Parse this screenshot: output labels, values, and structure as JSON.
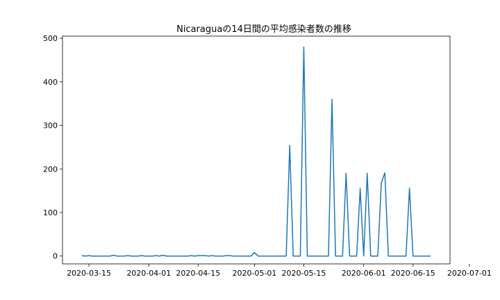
{
  "chart_data": {
    "type": "line",
    "title": "Nicaraguaの14日間の平均感染者数の推移",
    "xlabel": "",
    "ylabel": "",
    "ylim": [
      -18,
      505
    ],
    "xlim_days": [
      -5.5,
      104.5
    ],
    "base_date": "2020-03-15",
    "grid": false,
    "line_color": "#1f77b4",
    "x_ticks": [
      {
        "day": 2,
        "label": "2020-03-15"
      },
      {
        "day": 19,
        "label": "2020-04-01"
      },
      {
        "day": 33,
        "label": "2020-04-15"
      },
      {
        "day": 49,
        "label": "2020-05-01"
      },
      {
        "day": 63,
        "label": "2020-05-15"
      },
      {
        "day": 80,
        "label": "2020-06-01"
      },
      {
        "day": 94,
        "label": "2020-06-15"
      },
      {
        "day": 110,
        "label": "2020-07-01"
      }
    ],
    "y_ticks": [
      {
        "value": 0,
        "label": "0"
      },
      {
        "value": 100,
        "label": "100"
      },
      {
        "value": 200,
        "label": "200"
      },
      {
        "value": 300,
        "label": "300"
      },
      {
        "value": 400,
        "label": "400"
      },
      {
        "value": 500,
        "label": "500"
      }
    ],
    "series": [
      {
        "name": "Nicaragua",
        "points": [
          [
            0,
            1
          ],
          [
            1,
            0
          ],
          [
            2,
            1
          ],
          [
            3,
            0
          ],
          [
            4,
            0
          ],
          [
            5,
            0
          ],
          [
            6,
            0
          ],
          [
            7,
            0
          ],
          [
            8,
            0
          ],
          [
            9,
            2
          ],
          [
            10,
            0
          ],
          [
            11,
            0
          ],
          [
            12,
            0
          ],
          [
            13,
            1
          ],
          [
            14,
            0
          ],
          [
            15,
            0
          ],
          [
            16,
            0
          ],
          [
            17,
            1
          ],
          [
            18,
            0
          ],
          [
            19,
            0
          ],
          [
            20,
            0
          ],
          [
            21,
            1
          ],
          [
            22,
            0
          ],
          [
            23,
            2
          ],
          [
            24,
            0
          ],
          [
            25,
            0
          ],
          [
            26,
            0
          ],
          [
            27,
            0
          ],
          [
            28,
            0
          ],
          [
            29,
            0
          ],
          [
            30,
            0
          ],
          [
            31,
            1
          ],
          [
            32,
            0
          ],
          [
            33,
            1
          ],
          [
            34,
            1
          ],
          [
            35,
            1
          ],
          [
            36,
            0
          ],
          [
            37,
            1
          ],
          [
            38,
            0
          ],
          [
            39,
            0
          ],
          [
            40,
            0
          ],
          [
            41,
            1
          ],
          [
            42,
            1
          ],
          [
            43,
            0
          ],
          [
            44,
            0
          ],
          [
            45,
            0
          ],
          [
            46,
            0
          ],
          [
            47,
            0
          ],
          [
            48,
            0
          ],
          [
            49,
            8
          ],
          [
            50,
            0
          ],
          [
            51,
            0
          ],
          [
            52,
            0
          ],
          [
            53,
            0
          ],
          [
            54,
            0
          ],
          [
            55,
            0
          ],
          [
            56,
            0
          ],
          [
            57,
            0
          ],
          [
            58,
            0
          ],
          [
            59,
            254
          ],
          [
            60,
            0
          ],
          [
            61,
            0
          ],
          [
            62,
            0
          ],
          [
            63,
            480
          ],
          [
            64,
            0
          ],
          [
            65,
            0
          ],
          [
            66,
            0
          ],
          [
            67,
            0
          ],
          [
            68,
            0
          ],
          [
            69,
            0
          ],
          [
            70,
            0
          ],
          [
            71,
            360
          ],
          [
            72,
            0
          ],
          [
            73,
            0
          ],
          [
            74,
            0
          ],
          [
            75,
            190
          ],
          [
            76,
            0
          ],
          [
            77,
            0
          ],
          [
            78,
            0
          ],
          [
            79,
            155
          ],
          [
            80,
            0
          ],
          [
            81,
            190
          ],
          [
            82,
            0
          ],
          [
            83,
            0
          ],
          [
            84,
            0
          ],
          [
            85,
            168
          ],
          [
            86,
            191
          ],
          [
            87,
            0
          ],
          [
            88,
            0
          ],
          [
            89,
            0
          ],
          [
            90,
            0
          ],
          [
            91,
            0
          ],
          [
            92,
            0
          ],
          [
            93,
            156
          ],
          [
            94,
            0
          ],
          [
            95,
            0
          ],
          [
            96,
            0
          ],
          [
            97,
            0
          ],
          [
            98,
            0
          ],
          [
            99,
            0
          ]
        ]
      }
    ]
  }
}
